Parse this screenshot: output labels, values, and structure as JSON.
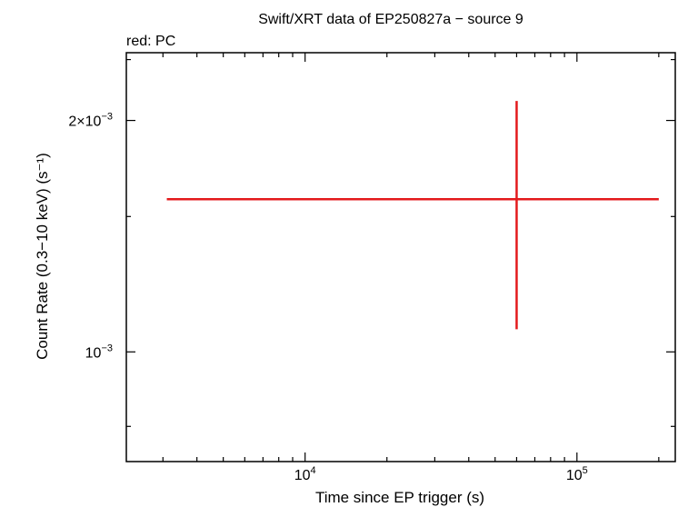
{
  "chart_data": {
    "type": "scatter",
    "title": "Swift/XRT data of EP250827a − source 9",
    "subtitle": "red: PC",
    "xlabel": "Time since EP trigger (s)",
    "ylabel": "Count Rate (0.3−10 keV) (s⁻¹)",
    "x_scale": "log",
    "y_scale": "log",
    "xlim": [
      2200,
      230000
    ],
    "ylim": [
      0.00072,
      0.00245
    ],
    "x_ticks": [
      {
        "value": 10000,
        "base": "10",
        "exp": "4"
      },
      {
        "value": 100000,
        "base": "10",
        "exp": "5"
      }
    ],
    "y_ticks": [
      {
        "value": 0.002,
        "base": "2×10",
        "exp": "−3"
      },
      {
        "value": 0.001,
        "base": "10",
        "exp": "−3"
      }
    ],
    "grid": false,
    "series": [
      {
        "color": "#e31a1c",
        "points": [
          {
            "x": 60000,
            "y": 0.00158,
            "xerr_low": 3100,
            "xerr_high": 200000,
            "yerr_low": 0.00107,
            "yerr_high": 0.00212
          }
        ]
      }
    ]
  }
}
